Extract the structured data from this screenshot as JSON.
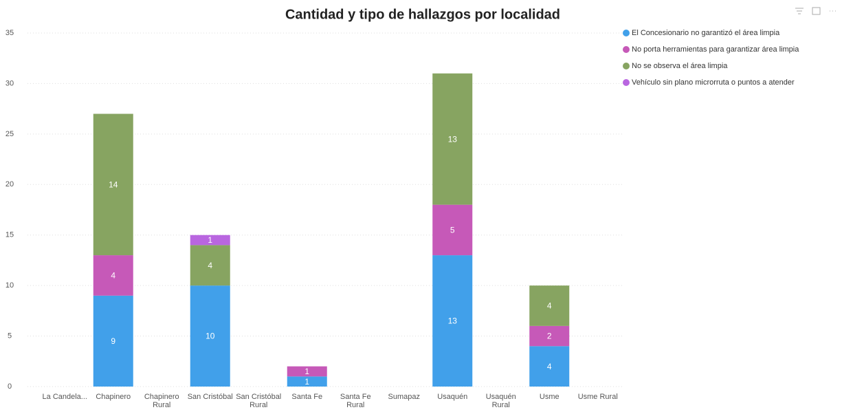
{
  "chart_data": {
    "type": "stacked-bar",
    "title": "Cantidad y tipo de hallazgos por localidad",
    "categories": [
      "La Candela...",
      "Chapinero",
      "Chapinero Rural",
      "San Cristóbal",
      "San Cristóbal Rural",
      "Santa Fe",
      "Santa Fe Rural",
      "Sumapaz",
      "Usaquén",
      "Usaquén Rural",
      "Usme",
      "Usme Rural"
    ],
    "series": [
      {
        "name": "El Concesionario no garantizó el área limpia",
        "color": "#41a0ea",
        "values": [
          null,
          9,
          null,
          10,
          null,
          1,
          null,
          null,
          13,
          null,
          4,
          null
        ]
      },
      {
        "name": "No porta herramientas para garantizar área limpia",
        "color": "#c659b8",
        "values": [
          null,
          4,
          null,
          null,
          null,
          1,
          null,
          null,
          5,
          null,
          2,
          null
        ]
      },
      {
        "name": "No se observa el área limpia",
        "color": "#87a461",
        "values": [
          null,
          14,
          null,
          4,
          null,
          null,
          null,
          null,
          13,
          null,
          4,
          null
        ]
      },
      {
        "name": "Vehículo sin plano microrruta o puntos a atender",
        "color": "#b966e0",
        "values": [
          null,
          null,
          null,
          1,
          null,
          null,
          null,
          null,
          null,
          null,
          null,
          null
        ]
      }
    ],
    "ylim": [
      0,
      35
    ],
    "yticks": [
      0,
      5,
      10,
      15,
      20,
      25,
      30,
      35
    ],
    "grid": true,
    "legend": "right"
  }
}
